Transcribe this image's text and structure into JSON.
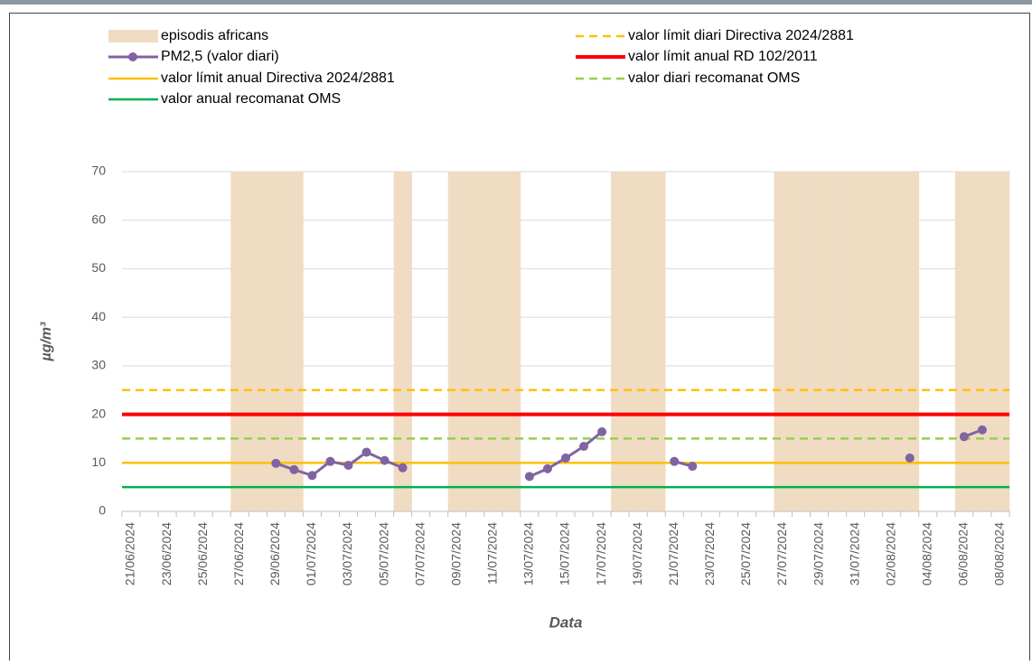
{
  "chart_data": {
    "type": "line",
    "y_label": "µg/m³",
    "x_label": "Data",
    "categories": [
      "21/06/2024",
      null,
      "23/06/2024",
      null,
      "25/06/2024",
      null,
      "27/06/2024",
      null,
      "29/06/2024",
      null,
      "01/07/2024",
      null,
      "03/07/2024",
      null,
      "05/07/2024",
      null,
      "07/07/2024",
      null,
      "09/07/2024",
      null,
      "11/07/2024",
      null,
      "13/07/2024",
      null,
      "15/07/2024",
      null,
      "17/07/2024",
      null,
      "19/07/2024",
      null,
      "21/07/2024",
      null,
      "23/07/2024",
      null,
      "25/07/2024",
      null,
      "27/07/2024",
      null,
      "29/07/2024",
      null,
      "31/07/2024",
      null,
      "02/08/2024",
      null,
      "04/08/2024",
      null,
      "06/08/2024",
      null,
      "08/08/2024"
    ],
    "bar_series": {
      "name": "episodis africans",
      "color": "#f0dcc3",
      "values": [
        null,
        null,
        null,
        null,
        null,
        null,
        70,
        70,
        70,
        70,
        null,
        null,
        null,
        null,
        null,
        70,
        null,
        null,
        70,
        70,
        70,
        70,
        null,
        null,
        null,
        null,
        null,
        70,
        70,
        70,
        null,
        null,
        null,
        null,
        null,
        null,
        70,
        70,
        70,
        70,
        70,
        70,
        70,
        70,
        null,
        null,
        70,
        70,
        70
      ]
    },
    "series": [
      {
        "name": "PM2,5 (valor diari)",
        "color": "#8064a2",
        "values": [
          null,
          null,
          null,
          null,
          null,
          null,
          null,
          null,
          9.9,
          8.6,
          7.4,
          10.3,
          9.5,
          12.2,
          10.5,
          9.0,
          null,
          null,
          null,
          null,
          null,
          null,
          7.2,
          8.8,
          11.0,
          13.4,
          16.4,
          null,
          null,
          null,
          10.3,
          9.3,
          null,
          null,
          null,
          null,
          null,
          null,
          null,
          null,
          null,
          null,
          null,
          11.0,
          null,
          null,
          15.4,
          16.8,
          null
        ]
      }
    ],
    "reference_lines": [
      {
        "name": "valor límit diari Directiva 2024/2881",
        "value": 25,
        "color": "#ffc000",
        "dashed": true
      },
      {
        "name": "valor límit anual RD 102/2011",
        "value": 20,
        "color": "#ff0000",
        "dashed": false
      },
      {
        "name": "valor límit anual Directiva 2024/2881",
        "value": 10,
        "color": "#ffc000",
        "dashed": false
      },
      {
        "name": "valor diari recomanat OMS",
        "value": 15,
        "color": "#92d050",
        "dashed": true
      },
      {
        "name": "valor anual recomanat OMS",
        "value": 5,
        "color": "#00b050",
        "dashed": false
      }
    ],
    "ylim": [
      0,
      70
    ],
    "yticks": [
      0,
      10,
      20,
      30,
      40,
      50,
      60,
      70
    ],
    "grid": true
  }
}
